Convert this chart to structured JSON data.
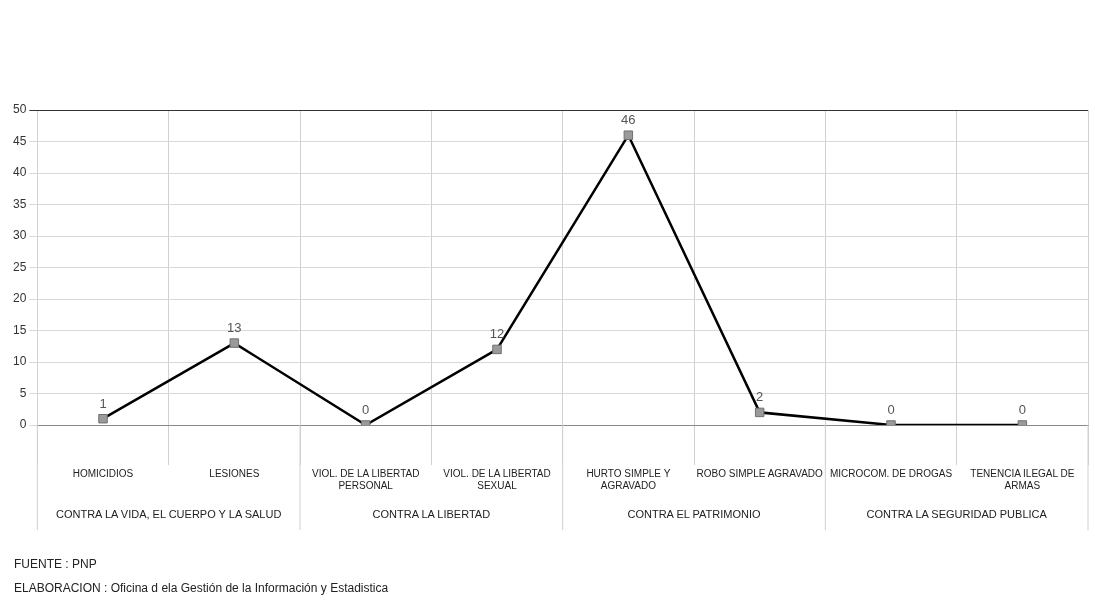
{
  "chart_data": {
    "type": "line",
    "categories": [
      "HOMICIDIOS",
      "LESIONES",
      "VIOL. DE LA LIBERTAD PERSONAL",
      "VIOL. DE LA LIBERTAD SEXUAL",
      "HURTO SIMPLE Y AGRAVADO",
      "ROBO SIMPLE AGRAVADO",
      "MICROCOM. DE DROGAS",
      "TENENCIA ILEGAL DE ARMAS"
    ],
    "series": [
      {
        "color": "#000000",
        "values": [
          1,
          13,
          0,
          12,
          46,
          2,
          0,
          0
        ]
      }
    ],
    "ylim": [
      0,
      50
    ],
    "yticks": [
      0,
      5,
      10,
      15,
      20,
      25,
      30,
      35,
      40,
      45,
      50
    ],
    "grid": true,
    "marker": "square",
    "line_style": "solid",
    "data_labels": true,
    "annotations": [
      "CONTRA LA VIDA, EL CUERPO Y LA SALUD",
      "CONTRA LA LIBERTAD",
      "CONTRA EL PATRIMONIO",
      "CONTRA LA SEGURIDAD PUBLICA",
      "FUENTE : PNP",
      "ELABORACION :  Oficina d ela Gestión de la Información y Estadistica"
    ]
  }
}
